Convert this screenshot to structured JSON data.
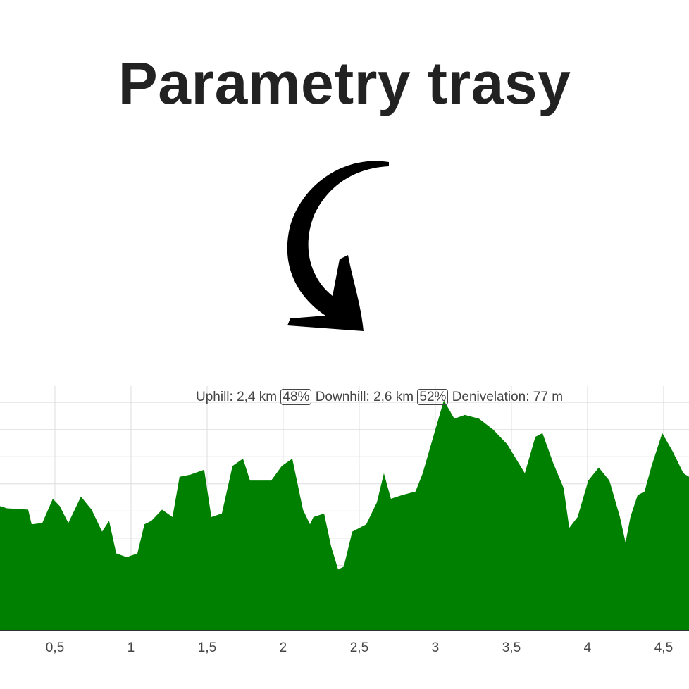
{
  "heading": "Parametry trasy",
  "chart_data": {
    "type": "area",
    "annotations": [
      "Uphill: 2,4 km",
      "48%",
      "Downhill: 2,6 km",
      "52%",
      "Denivelation: 77 m"
    ],
    "x": [
      0.139,
      0.185,
      0.324,
      0.347,
      0.417,
      0.486,
      0.532,
      0.588,
      0.671,
      0.741,
      0.81,
      0.856,
      0.903,
      0.972,
      1.042,
      1.088,
      1.134,
      1.204,
      1.273,
      1.319,
      1.389,
      1.481,
      1.528,
      1.597,
      1.667,
      1.736,
      1.782,
      1.852,
      1.921,
      1.991,
      2.06,
      2.13,
      2.176,
      2.199,
      2.269,
      2.315,
      2.361,
      2.398,
      2.454,
      2.546,
      2.616,
      2.662,
      2.708,
      2.778,
      2.87,
      2.917,
      2.986,
      3.056,
      3.125,
      3.194,
      3.287,
      3.38,
      3.472,
      3.588,
      3.657,
      3.704,
      3.773,
      3.843,
      3.88,
      3.935,
      4.005,
      4.074,
      4.144,
      4.213,
      4.25,
      4.282,
      4.329,
      4.375,
      4.421,
      4.491,
      4.56,
      4.63,
      4.667
    ],
    "values": [
      51.8,
      51.0,
      50.5,
      45.1,
      45.6,
      54.5,
      51.8,
      45.6,
      55.3,
      50.5,
      42.4,
      46.4,
      34.4,
      33.0,
      34.4,
      45.1,
      46.4,
      50.5,
      47.8,
      62.6,
      63.4,
      65.2,
      47.8,
      49.1,
      66.6,
      69.3,
      61.2,
      61.2,
      61.2,
      66.6,
      69.3,
      50.5,
      45.1,
      47.8,
      49.1,
      37.0,
      28.5,
      29.5,
      42.4,
      45.1,
      53.2,
      63.9,
      54.5,
      55.8,
      57.2,
      63.9,
      77.3,
      90.7,
      84.0,
      85.4,
      84.0,
      80.0,
      74.6,
      63.9,
      77.3,
      78.7,
      67.9,
      58.5,
      43.8,
      47.8,
      61.2,
      66.0,
      61.2,
      47.8,
      38.4,
      47.8,
      55.8,
      57.2,
      66.6,
      78.7,
      71.9,
      63.9,
      62.6
    ],
    "color": "#008000",
    "xlim": [
      0.139,
      4.667
    ],
    "xticks": [
      {
        "value": 0.5,
        "label": "0,5"
      },
      1,
      {
        "value": 1.5,
        "label": "1,5"
      },
      2,
      {
        "value": 2.5,
        "label": "2,5"
      },
      3,
      {
        "value": 3.5,
        "label": "3,5"
      },
      4,
      {
        "value": 4.5,
        "label": "4,5"
      }
    ],
    "ylim": [
      6,
      96
    ],
    "yticks": [
      10,
      20,
      30,
      40,
      50,
      60,
      70,
      80,
      90
    ],
    "grid": true
  }
}
